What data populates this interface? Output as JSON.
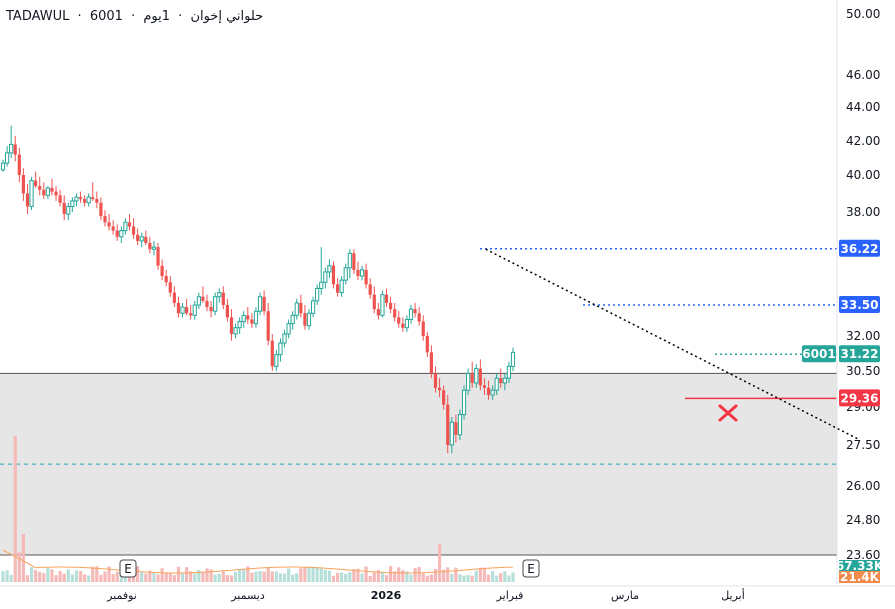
{
  "header": {
    "exchange": "TADAWUL",
    "sep1": "·",
    "symbol": "6001",
    "sep2": "·",
    "company": "حلواني إخوان",
    "sep3": "·",
    "interval": "1يوم"
  },
  "colors": {
    "up": "#26a69a",
    "down": "#ef5350",
    "blue_level": "#2962ff",
    "red_level": "#f23645",
    "zone": "#e6e6e6",
    "zone_dash": "#22a5b8",
    "trend": "#000000"
  },
  "chart_data": {
    "type": "candlestick",
    "title": "",
    "ylim": [
      23.6,
      50.0
    ],
    "y_ticks": [
      {
        "value": 50.0,
        "label": "50.00"
      },
      {
        "value": 46.0,
        "label": "46.00"
      },
      {
        "value": 44.0,
        "label": "44.00"
      },
      {
        "value": 42.0,
        "label": "42.00"
      },
      {
        "value": 40.0,
        "label": "40.00"
      },
      {
        "value": 38.0,
        "label": "38.00"
      },
      {
        "value": 32.0,
        "label": "32.00"
      },
      {
        "value": 30.5,
        "label": "30.50"
      },
      {
        "value": 29.0,
        "label": "29.00"
      },
      {
        "value": 27.5,
        "label": "27.50"
      },
      {
        "value": 26.0,
        "label": "26.00"
      },
      {
        "value": 24.8,
        "label": "24.80"
      },
      {
        "value": 23.6,
        "label": "23.60"
      }
    ],
    "x_labels": [
      {
        "label": "نوفمبر",
        "index": 28,
        "bold": false
      },
      {
        "label": "ديسمبر",
        "index": 60,
        "bold": false
      },
      {
        "label": "2026",
        "index": 94,
        "bold": true
      },
      {
        "label": "فبراير",
        "index": 125,
        "bold": false
      },
      {
        "label": "مارس",
        "index": 153,
        "bold": false
      },
      {
        "label": "أبريل",
        "index": 179,
        "bold": false
      }
    ],
    "candles_ohlc": [
      [
        40.3,
        40.9,
        40.2,
        40.7
      ],
      [
        40.7,
        41.7,
        40.5,
        41.3
      ],
      [
        41.3,
        42.9,
        41.0,
        41.8
      ],
      [
        41.8,
        42.3,
        40.8,
        41.2
      ],
      [
        41.2,
        41.6,
        39.6,
        40.0
      ],
      [
        40.0,
        40.4,
        38.6,
        39.0
      ],
      [
        39.0,
        39.5,
        37.9,
        38.3
      ],
      [
        38.3,
        39.9,
        38.1,
        39.7
      ],
      [
        39.7,
        40.2,
        39.3,
        39.4
      ],
      [
        39.4,
        39.9,
        38.9,
        39.2
      ],
      [
        39.2,
        39.6,
        38.7,
        38.9
      ],
      [
        38.9,
        39.4,
        38.7,
        39.3
      ],
      [
        39.3,
        39.8,
        38.9,
        39.1
      ],
      [
        39.1,
        39.4,
        38.6,
        38.9
      ],
      [
        38.9,
        39.2,
        38.3,
        38.5
      ],
      [
        38.5,
        38.9,
        37.6,
        37.9
      ],
      [
        37.9,
        38.5,
        37.6,
        38.3
      ],
      [
        38.3,
        38.8,
        38.0,
        38.6
      ],
      [
        38.6,
        39.0,
        38.3,
        38.8
      ],
      [
        38.8,
        39.1,
        38.5,
        38.7
      ],
      [
        38.7,
        38.9,
        38.3,
        38.5
      ],
      [
        38.5,
        39.0,
        38.3,
        38.8
      ],
      [
        38.8,
        39.6,
        38.6,
        38.7
      ],
      [
        38.7,
        39.1,
        38.2,
        38.5
      ],
      [
        38.5,
        38.8,
        37.6,
        37.8
      ],
      [
        37.8,
        38.1,
        37.3,
        37.5
      ],
      [
        37.5,
        37.9,
        37.1,
        37.3
      ],
      [
        37.3,
        37.6,
        36.9,
        37.1
      ],
      [
        37.1,
        37.4,
        36.6,
        36.8
      ],
      [
        36.8,
        37.3,
        36.5,
        37.1
      ],
      [
        37.1,
        37.7,
        36.9,
        37.5
      ],
      [
        37.5,
        37.9,
        37.1,
        37.3
      ],
      [
        37.3,
        37.7,
        36.7,
        36.9
      ],
      [
        36.9,
        37.2,
        36.4,
        36.6
      ],
      [
        36.6,
        37.0,
        36.3,
        36.8
      ],
      [
        36.8,
        37.1,
        36.4,
        36.5
      ],
      [
        36.5,
        36.8,
        36.0,
        36.2
      ],
      [
        36.2,
        36.6,
        35.9,
        36.3
      ],
      [
        36.3,
        36.5,
        35.2,
        35.4
      ],
      [
        35.4,
        35.7,
        34.7,
        34.9
      ],
      [
        34.9,
        35.2,
        34.4,
        34.6
      ],
      [
        34.6,
        34.9,
        33.9,
        34.1
      ],
      [
        34.1,
        34.4,
        33.4,
        33.6
      ],
      [
        33.6,
        33.9,
        32.9,
        33.1
      ],
      [
        33.1,
        33.6,
        32.9,
        33.4
      ],
      [
        33.4,
        33.8,
        33.0,
        33.1
      ],
      [
        33.1,
        33.5,
        32.8,
        33.0
      ],
      [
        33.0,
        33.7,
        32.8,
        33.5
      ],
      [
        33.5,
        34.1,
        33.3,
        33.9
      ],
      [
        33.9,
        34.4,
        33.6,
        33.7
      ],
      [
        33.7,
        34.0,
        33.2,
        33.4
      ],
      [
        33.4,
        33.7,
        32.9,
        33.2
      ],
      [
        33.2,
        34.1,
        33.0,
        33.9
      ],
      [
        33.9,
        34.3,
        33.6,
        34.1
      ],
      [
        34.1,
        34.4,
        33.3,
        33.5
      ],
      [
        33.5,
        33.8,
        32.7,
        32.9
      ],
      [
        32.9,
        33.3,
        31.8,
        32.1
      ],
      [
        32.1,
        32.6,
        31.9,
        32.4
      ],
      [
        32.4,
        32.9,
        32.1,
        32.7
      ],
      [
        32.7,
        33.2,
        32.4,
        33.0
      ],
      [
        33.0,
        33.4,
        32.6,
        32.8
      ],
      [
        32.8,
        33.1,
        32.4,
        32.6
      ],
      [
        32.6,
        33.4,
        32.4,
        33.2
      ],
      [
        33.2,
        34.1,
        33.0,
        33.9
      ],
      [
        33.9,
        34.2,
        33.0,
        33.2
      ],
      [
        33.2,
        33.6,
        31.6,
        31.8
      ],
      [
        31.8,
        32.1,
        30.5,
        30.7
      ],
      [
        30.7,
        31.4,
        30.5,
        31.2
      ],
      [
        31.2,
        31.9,
        30.9,
        31.7
      ],
      [
        31.7,
        32.3,
        31.5,
        32.1
      ],
      [
        32.1,
        32.8,
        31.9,
        32.6
      ],
      [
        32.6,
        33.2,
        32.3,
        33.0
      ],
      [
        33.0,
        33.8,
        32.8,
        33.6
      ],
      [
        33.6,
        34.0,
        32.9,
        33.1
      ],
      [
        33.1,
        33.5,
        32.3,
        32.5
      ],
      [
        32.5,
        33.3,
        32.3,
        33.1
      ],
      [
        33.1,
        33.9,
        32.9,
        33.7
      ],
      [
        33.7,
        34.5,
        33.5,
        34.3
      ],
      [
        34.3,
        36.3,
        34.0,
        34.6
      ],
      [
        34.6,
        35.3,
        34.3,
        35.1
      ],
      [
        35.1,
        35.7,
        34.8,
        35.4
      ],
      [
        35.4,
        35.6,
        34.3,
        34.5
      ],
      [
        34.5,
        34.8,
        33.9,
        34.1
      ],
      [
        34.1,
        34.9,
        33.9,
        34.7
      ],
      [
        34.7,
        35.5,
        34.5,
        35.3
      ],
      [
        35.3,
        36.2,
        34.8,
        36.0
      ],
      [
        36.0,
        36.2,
        35.0,
        35.2
      ],
      [
        35.2,
        35.6,
        34.7,
        34.9
      ],
      [
        34.9,
        35.4,
        34.7,
        35.2
      ],
      [
        35.2,
        35.5,
        34.3,
        34.5
      ],
      [
        34.5,
        34.8,
        33.8,
        34.0
      ],
      [
        34.0,
        34.4,
        33.1,
        33.3
      ],
      [
        33.3,
        33.6,
        32.8,
        33.0
      ],
      [
        33.0,
        34.2,
        32.9,
        34.0
      ],
      [
        34.0,
        34.3,
        33.4,
        33.6
      ],
      [
        33.6,
        33.9,
        33.1,
        33.3
      ],
      [
        33.3,
        33.6,
        32.7,
        32.9
      ],
      [
        32.9,
        33.2,
        32.4,
        32.6
      ],
      [
        32.6,
        32.9,
        32.2,
        32.4
      ],
      [
        32.4,
        33.0,
        32.2,
        32.8
      ],
      [
        32.8,
        33.5,
        32.6,
        33.3
      ],
      [
        33.3,
        33.6,
        32.9,
        33.1
      ],
      [
        33.1,
        33.4,
        32.5,
        32.7
      ],
      [
        32.7,
        33.0,
        31.8,
        32.0
      ],
      [
        32.0,
        32.2,
        31.1,
        31.3
      ],
      [
        31.3,
        31.6,
        30.2,
        30.4
      ],
      [
        30.4,
        30.7,
        29.6,
        29.8
      ],
      [
        29.8,
        30.2,
        29.4,
        29.7
      ],
      [
        29.7,
        29.9,
        28.9,
        29.1
      ],
      [
        29.1,
        29.5,
        27.2,
        27.5
      ],
      [
        27.5,
        28.6,
        27.2,
        28.4
      ],
      [
        28.4,
        28.7,
        27.6,
        27.9
      ],
      [
        27.9,
        28.9,
        27.7,
        28.7
      ],
      [
        28.7,
        29.9,
        28.5,
        29.7
      ],
      [
        29.7,
        30.6,
        29.5,
        30.4
      ],
      [
        30.4,
        30.9,
        29.8,
        30.0
      ],
      [
        30.0,
        30.8,
        29.8,
        30.6
      ],
      [
        30.6,
        31.0,
        29.7,
        29.9
      ],
      [
        29.9,
        30.2,
        29.5,
        29.8
      ],
      [
        29.8,
        30.1,
        29.3,
        29.5
      ],
      [
        29.5,
        29.9,
        29.3,
        29.7
      ],
      [
        29.7,
        30.4,
        29.5,
        30.2
      ],
      [
        30.2,
        30.6,
        29.8,
        30.0
      ],
      [
        30.0,
        30.4,
        29.7,
        30.2
      ],
      [
        30.2,
        30.9,
        30.0,
        30.7
      ],
      [
        30.7,
        31.5,
        30.5,
        31.3
      ]
    ],
    "levels": [
      {
        "label": "36.22",
        "value": 36.22,
        "color": "#2962ff",
        "style": "dotted"
      },
      {
        "label": "33.50",
        "value": 33.5,
        "color": "#2962ff",
        "style": "dotted"
      },
      {
        "label": "31.22",
        "value": 31.22,
        "color": "#26a69a",
        "style": "dotted",
        "symbol_tag": "6001"
      },
      {
        "label": "29.36",
        "value": 29.36,
        "color": "#f23645",
        "style": "solid"
      }
    ],
    "zone": {
      "top": 30.4,
      "bottom": 23.6,
      "dashed_level": 26.8
    },
    "trendline": {
      "from": [
        122,
        36.2
      ],
      "to": [
        210,
        27.7
      ],
      "style": "dotted"
    },
    "marker": {
      "type": "x",
      "index": 180,
      "value": 28.6,
      "color": "#f23645"
    },
    "earnings_markers": [
      {
        "label": "E",
        "index": 30
      },
      {
        "label": "E",
        "index": 130
      }
    ],
    "volume": {
      "labels": [
        "67.33K",
        "21.4K"
      ],
      "label_colors": [
        "#26a69a",
        "#f28a4b"
      ]
    }
  }
}
